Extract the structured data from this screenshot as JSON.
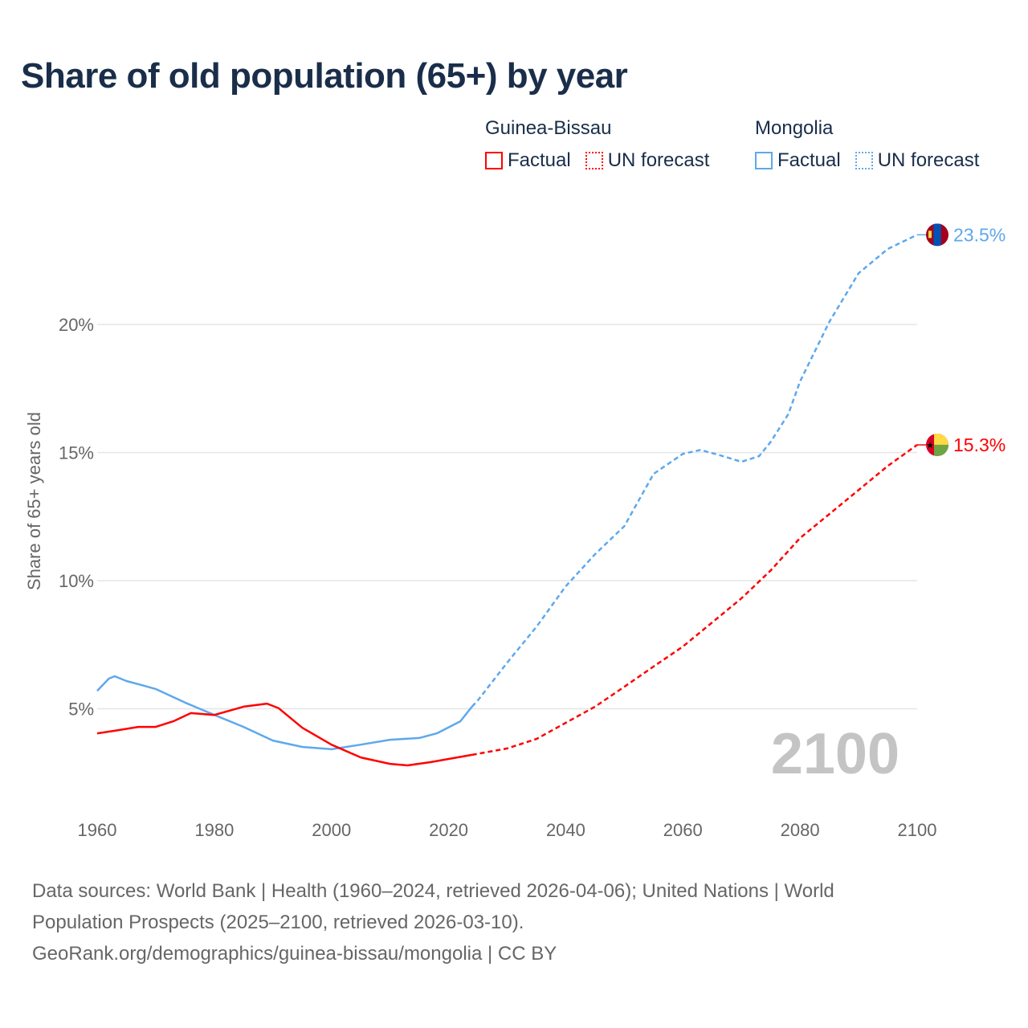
{
  "title": "Share of old population (65+) by year",
  "legend": [
    {
      "country": "Guinea-Bissau",
      "factual": "Factual",
      "forecast": "UN forecast",
      "color": "#ff0000"
    },
    {
      "country": "Mongolia",
      "factual": "Factual",
      "forecast": "UN forecast",
      "color": "#5ea8ec"
    }
  ],
  "footer": {
    "line1": "Data sources: World Bank | Health (1960–2024, retrieved 2026-04-06); United Nations | World",
    "line2": "Population Prospects (2025–2100, retrieved 2026-03-10).",
    "line3": "GeoRank.org/demographics/guinea-bissau/mongolia | CC BY"
  },
  "chart_data": {
    "type": "line",
    "title": "Share of old population (65+) by year",
    "ylabel": "Share of 65+ years old",
    "xlabel": "",
    "xlim": [
      1960,
      2100
    ],
    "ylim": [
      0,
      25
    ],
    "x_ticks": [
      "1960",
      "1980",
      "2000",
      "2020",
      "2040",
      "2060",
      "2080",
      "2100"
    ],
    "y_ticks": [
      {
        "v": 5,
        "label": "5%"
      },
      {
        "v": 10,
        "label": "10%"
      },
      {
        "v": 15,
        "label": "15%"
      },
      {
        "v": 20,
        "label": "20%"
      }
    ],
    "grid": true,
    "year_watermark": "2100",
    "series": [
      {
        "name": "Mongolia",
        "color": "#5ea8ec",
        "end_label": "23.5%",
        "factual": [
          [
            1960,
            5.7
          ],
          [
            1962,
            6.18
          ],
          [
            1963,
            6.27
          ],
          [
            1965,
            6.08
          ],
          [
            1968,
            5.9
          ],
          [
            1970,
            5.77
          ],
          [
            1975,
            5.24
          ],
          [
            1980,
            4.76
          ],
          [
            1985,
            4.29
          ],
          [
            1990,
            3.76
          ],
          [
            1995,
            3.51
          ],
          [
            2000,
            3.42
          ],
          [
            2005,
            3.6
          ],
          [
            2010,
            3.79
          ],
          [
            2015,
            3.86
          ],
          [
            2018,
            4.04
          ],
          [
            2022,
            4.51
          ],
          [
            2024,
            5.08
          ]
        ],
        "forecast": [
          [
            2024,
            5.08
          ],
          [
            2025,
            5.33
          ],
          [
            2030,
            6.8
          ],
          [
            2035,
            8.2
          ],
          [
            2040,
            9.78
          ],
          [
            2045,
            11.03
          ],
          [
            2050,
            12.13
          ],
          [
            2055,
            14.17
          ],
          [
            2060,
            14.95
          ],
          [
            2063,
            15.1
          ],
          [
            2066,
            14.92
          ],
          [
            2070,
            14.64
          ],
          [
            2073,
            14.86
          ],
          [
            2075,
            15.42
          ],
          [
            2078,
            16.5
          ],
          [
            2080,
            17.77
          ],
          [
            2085,
            20.1
          ],
          [
            2090,
            22.0
          ],
          [
            2095,
            22.95
          ],
          [
            2100,
            23.5
          ]
        ]
      },
      {
        "name": "Guinea-Bissau",
        "color": "#ff0000",
        "end_label": "15.3%",
        "factual": [
          [
            1960,
            4.04
          ],
          [
            1963,
            4.14
          ],
          [
            1967,
            4.29
          ],
          [
            1970,
            4.29
          ],
          [
            1973,
            4.51
          ],
          [
            1976,
            4.83
          ],
          [
            1980,
            4.76
          ],
          [
            1985,
            5.08
          ],
          [
            1989,
            5.2
          ],
          [
            1991,
            5.02
          ],
          [
            1995,
            4.26
          ],
          [
            2000,
            3.6
          ],
          [
            2005,
            3.1
          ],
          [
            2010,
            2.85
          ],
          [
            2013,
            2.79
          ],
          [
            2017,
            2.92
          ],
          [
            2020,
            3.04
          ],
          [
            2024,
            3.2
          ]
        ],
        "forecast": [
          [
            2024,
            3.2
          ],
          [
            2030,
            3.45
          ],
          [
            2035,
            3.82
          ],
          [
            2040,
            4.45
          ],
          [
            2045,
            5.08
          ],
          [
            2050,
            5.86
          ],
          [
            2055,
            6.65
          ],
          [
            2060,
            7.43
          ],
          [
            2065,
            8.37
          ],
          [
            2070,
            9.31
          ],
          [
            2075,
            10.4
          ],
          [
            2080,
            11.66
          ],
          [
            2085,
            12.6
          ],
          [
            2090,
            13.54
          ],
          [
            2095,
            14.48
          ],
          [
            2100,
            15.3
          ]
        ]
      }
    ]
  }
}
